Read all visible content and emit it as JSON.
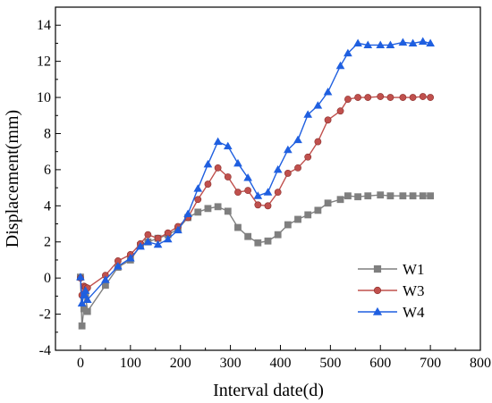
{
  "chart_data": {
    "type": "line",
    "title": "",
    "xlabel": "Interval date(d)",
    "ylabel": "Displacement(mm)",
    "xlim": [
      -50,
      800
    ],
    "ylim": [
      -4,
      15
    ],
    "xticks": [
      0,
      100,
      200,
      300,
      400,
      500,
      600,
      700,
      800
    ],
    "yticks": [
      -4,
      -2,
      0,
      2,
      4,
      6,
      8,
      10,
      12,
      14
    ],
    "grid": false,
    "legend_position": "bottom-right",
    "series": [
      {
        "name": "W1",
        "color": "#7f7f7f",
        "marker": "square",
        "x": [
          0,
          3,
          7,
          10,
          14,
          50,
          75,
          100,
          120,
          135,
          155,
          175,
          195,
          215,
          235,
          255,
          275,
          295,
          315,
          335,
          355,
          375,
          395,
          415,
          435,
          455,
          475,
          495,
          520,
          535,
          555,
          575,
          600,
          620,
          645,
          665,
          685,
          700
        ],
        "y": [
          0.05,
          -2.65,
          -1.7,
          -0.9,
          -1.85,
          -0.4,
          0.6,
          1.0,
          1.8,
          2.0,
          2.2,
          2.4,
          2.7,
          3.35,
          3.65,
          3.85,
          3.95,
          3.7,
          2.8,
          2.3,
          1.95,
          2.05,
          2.4,
          2.95,
          3.25,
          3.5,
          3.75,
          4.15,
          4.35,
          4.55,
          4.5,
          4.55,
          4.6,
          4.55,
          4.55,
          4.55,
          4.55,
          4.55
        ]
      },
      {
        "name": "W3",
        "color": "#c0504d",
        "marker": "circle",
        "x": [
          0,
          3,
          7,
          10,
          14,
          50,
          75,
          100,
          120,
          135,
          155,
          175,
          195,
          215,
          235,
          255,
          275,
          295,
          315,
          335,
          355,
          375,
          395,
          415,
          435,
          455,
          475,
          495,
          520,
          535,
          555,
          575,
          600,
          620,
          645,
          665,
          685,
          700
        ],
        "y": [
          0.0,
          -0.95,
          -0.45,
          -0.5,
          -0.55,
          0.15,
          0.95,
          1.3,
          1.9,
          2.4,
          2.2,
          2.5,
          2.85,
          3.35,
          4.35,
          5.2,
          6.1,
          5.6,
          4.75,
          4.85,
          4.05,
          4.0,
          4.75,
          5.8,
          6.1,
          6.7,
          7.55,
          8.75,
          9.25,
          9.9,
          10.0,
          10.0,
          10.05,
          10.0,
          10.0,
          10.0,
          10.05,
          10.0
        ]
      },
      {
        "name": "W4",
        "color": "#1f5fe0",
        "marker": "triangle",
        "x": [
          0,
          3,
          7,
          10,
          14,
          50,
          75,
          100,
          120,
          135,
          155,
          175,
          195,
          215,
          235,
          255,
          275,
          295,
          315,
          335,
          355,
          375,
          395,
          415,
          435,
          455,
          475,
          495,
          520,
          535,
          555,
          575,
          600,
          620,
          645,
          665,
          685,
          700
        ],
        "y": [
          0.05,
          -1.4,
          -0.95,
          -0.7,
          -1.2,
          -0.1,
          0.65,
          1.1,
          1.75,
          2.0,
          1.85,
          2.15,
          2.65,
          3.55,
          4.95,
          6.3,
          7.55,
          7.3,
          6.35,
          5.55,
          4.55,
          4.75,
          6.0,
          7.1,
          7.65,
          9.05,
          9.55,
          10.3,
          11.75,
          12.45,
          13.0,
          12.9,
          12.9,
          12.9,
          13.05,
          13.0,
          13.1,
          13.0
        ]
      }
    ]
  }
}
